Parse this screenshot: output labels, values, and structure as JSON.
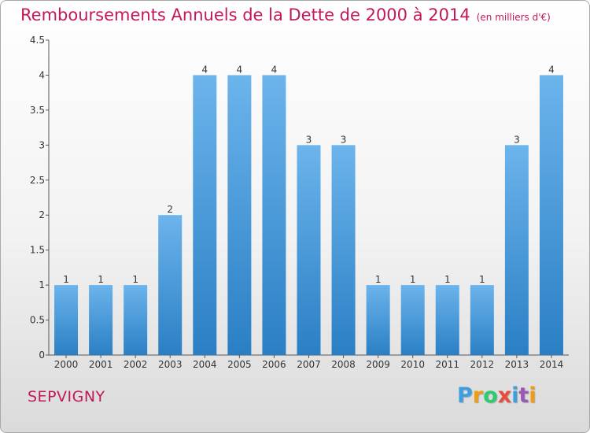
{
  "header": {
    "title": "Remboursements Annuels de la Dette de 2000 à 2014",
    "unit": "(en milliers d'€)"
  },
  "footer": {
    "commune": "SEPVIGNY",
    "logo_letters": [
      "P",
      "r",
      "o",
      "x",
      "i",
      "t",
      "i"
    ],
    "logo_colors": [
      "#3ca0e0",
      "#f39c12",
      "#2ecc71",
      "#e74c3c",
      "#3ca0e0",
      "#9b59b6",
      "#f39c12"
    ]
  },
  "colors": {
    "bar_top": "#6cb4ec",
    "bar_bottom": "#2a7fc4",
    "title": "#c2185b"
  },
  "chart_data": {
    "type": "bar",
    "title": "Remboursements Annuels de la Dette de 2000 à 2014",
    "xlabel": "",
    "ylabel": "",
    "categories": [
      "2000",
      "2001",
      "2002",
      "2003",
      "2004",
      "2005",
      "2006",
      "2007",
      "2008",
      "2009",
      "2010",
      "2011",
      "2012",
      "2013",
      "2014"
    ],
    "values": [
      1,
      1,
      1,
      2,
      4,
      4,
      4,
      3,
      3,
      1,
      1,
      1,
      1,
      3,
      4
    ],
    "ylim": [
      0,
      4.5
    ],
    "yticks": [
      "0",
      "0.5",
      "1",
      "1.5",
      "2",
      "2.5",
      "3",
      "3.5",
      "4",
      "4.5"
    ],
    "grid": false,
    "data_labels": true
  }
}
